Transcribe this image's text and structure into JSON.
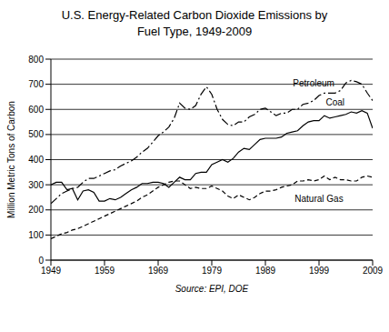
{
  "chart_data": {
    "type": "line",
    "title": "U.S. Energy-Related Carbon Dioxide Emissions by Fuel Type, 1949-2009",
    "y_label": "Million Metric Tons of Carbon",
    "source": "Source: EPI, DOE",
    "x": [
      1949,
      1950,
      1951,
      1952,
      1953,
      1954,
      1955,
      1956,
      1957,
      1958,
      1959,
      1960,
      1961,
      1962,
      1963,
      1964,
      1965,
      1966,
      1967,
      1968,
      1969,
      1970,
      1971,
      1972,
      1973,
      1974,
      1975,
      1976,
      1977,
      1978,
      1979,
      1980,
      1981,
      1982,
      1983,
      1984,
      1985,
      1986,
      1987,
      1988,
      1989,
      1990,
      1991,
      1992,
      1993,
      1994,
      1995,
      1996,
      1997,
      1998,
      1999,
      2000,
      2001,
      2002,
      2003,
      2004,
      2005,
      2006,
      2007,
      2008,
      2009
    ],
    "series": [
      {
        "name": "Petroleum",
        "color": "#000000",
        "line_style": "dashdot",
        "values": [
          225,
          245,
          265,
          275,
          285,
          290,
          310,
          325,
          325,
          335,
          345,
          355,
          360,
          375,
          385,
          395,
          410,
          430,
          445,
          470,
          495,
          510,
          530,
          565,
          625,
          605,
          600,
          615,
          660,
          690,
          660,
          600,
          560,
          540,
          535,
          550,
          550,
          570,
          580,
          600,
          605,
          590,
          575,
          585,
          585,
          600,
          600,
          620,
          625,
          635,
          655,
          665,
          665,
          665,
          675,
          705,
          715,
          710,
          700,
          665,
          635
        ]
      },
      {
        "name": "Coal",
        "color": "#000000",
        "line_style": "solid",
        "values": [
          300,
          310,
          310,
          280,
          285,
          240,
          275,
          280,
          270,
          235,
          235,
          245,
          240,
          250,
          265,
          280,
          290,
          305,
          305,
          310,
          310,
          305,
          290,
          310,
          330,
          320,
          320,
          345,
          350,
          350,
          380,
          390,
          400,
          390,
          405,
          430,
          445,
          440,
          460,
          480,
          485,
          485,
          485,
          490,
          505,
          510,
          515,
          535,
          550,
          555,
          555,
          575,
          565,
          570,
          575,
          580,
          590,
          585,
          595,
          585,
          525
        ]
      },
      {
        "name": "Natural Gas",
        "color": "#000000",
        "line_style": "dashed",
        "values": [
          85,
          95,
          105,
          110,
          120,
          125,
          135,
          145,
          155,
          165,
          175,
          185,
          195,
          205,
          215,
          225,
          235,
          250,
          260,
          275,
          290,
          300,
          310,
          315,
          315,
          300,
          285,
          290,
          285,
          285,
          295,
          285,
          275,
          255,
          245,
          260,
          250,
          240,
          250,
          265,
          275,
          275,
          280,
          290,
          295,
          300,
          315,
          315,
          320,
          315,
          320,
          335,
          320,
          330,
          320,
          320,
          315,
          315,
          330,
          335,
          330
        ]
      }
    ],
    "xlim": [
      1949,
      2009
    ],
    "xticks": [
      1949,
      1959,
      1969,
      1979,
      1989,
      1999,
      2009
    ],
    "ylim": [
      0,
      800
    ],
    "yticks": [
      0,
      100,
      200,
      300,
      400,
      500,
      600,
      700,
      800
    ],
    "grid": true,
    "legend": "none"
  }
}
